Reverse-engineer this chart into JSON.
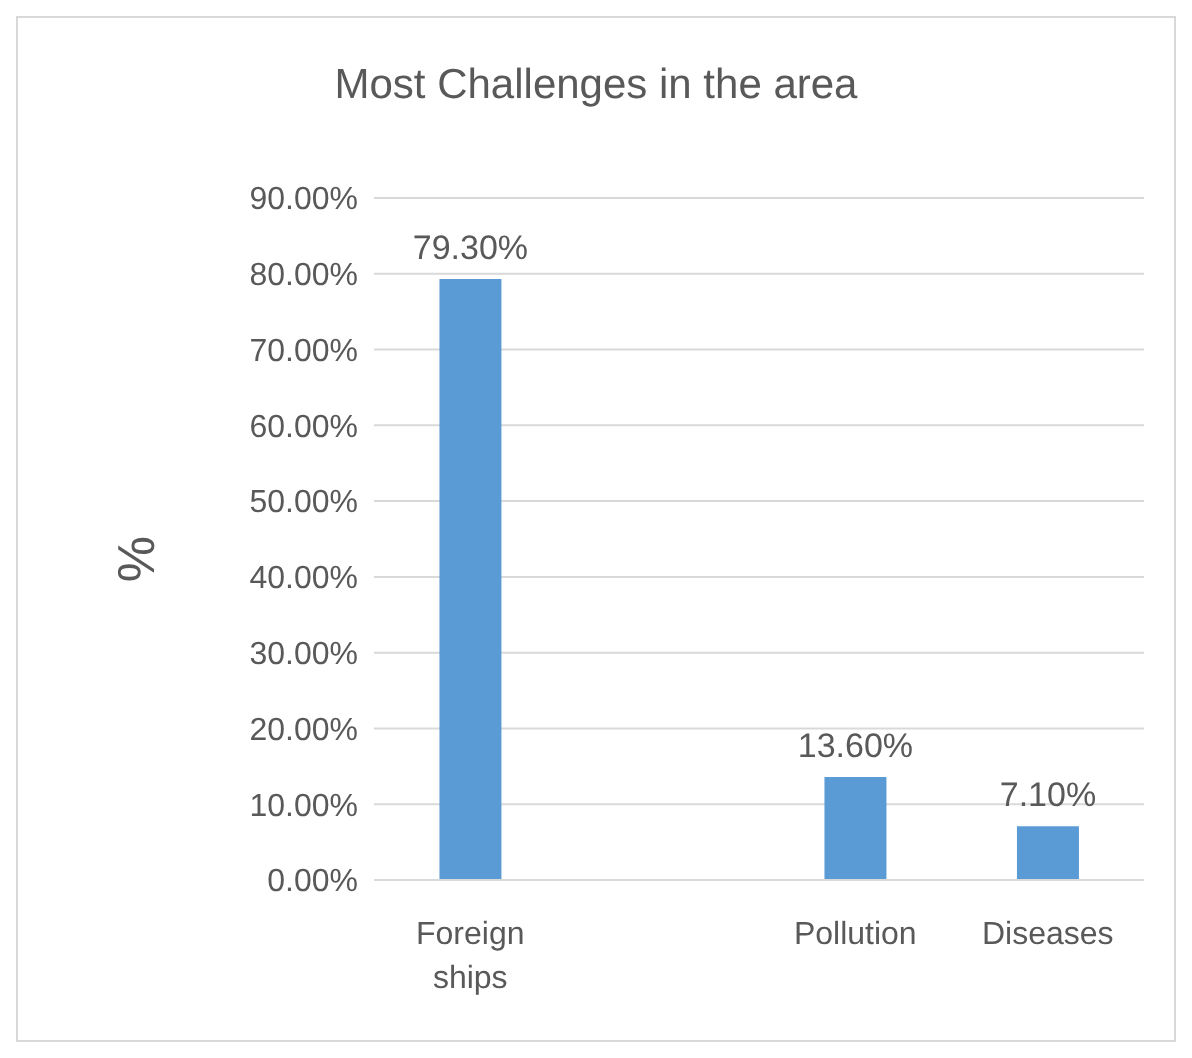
{
  "chart_data": {
    "type": "bar",
    "title": "Most Challenges in the area",
    "ylabel": "%",
    "categories": [
      "Foreign ships",
      null,
      "Pollution",
      "Diseases"
    ],
    "values": [
      79.3,
      null,
      13.6,
      7.1
    ],
    "value_labels": [
      "79.30%",
      null,
      "13.60%",
      "7.10%"
    ],
    "color": "#5b9bd5",
    "ylim": [
      0,
      90
    ],
    "yticks": [
      {
        "value": 0,
        "label": "0.00%"
      },
      {
        "value": 10,
        "label": "10.00%"
      },
      {
        "value": 20,
        "label": "20.00%"
      },
      {
        "value": 30,
        "label": "30.00%"
      },
      {
        "value": 40,
        "label": "40.00%"
      },
      {
        "value": 50,
        "label": "50.00%"
      },
      {
        "value": 60,
        "label": "60.00%"
      },
      {
        "value": 70,
        "label": "70.00%"
      },
      {
        "value": 80,
        "label": "80.00%"
      },
      {
        "value": 90,
        "label": "90.00%"
      }
    ],
    "grid": "y",
    "legend": false
  }
}
